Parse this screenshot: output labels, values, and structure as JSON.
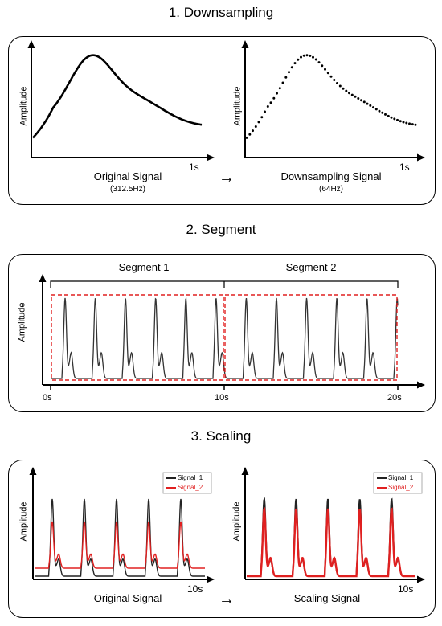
{
  "sections": [
    {
      "title": "1. Downsampling"
    },
    {
      "title": "2. Segment"
    },
    {
      "title": "3. Scaling"
    }
  ],
  "downsampling": {
    "left": {
      "ylabel": "Amplitude",
      "tick": "1s",
      "caption": "Original Signal",
      "subcaption": "(312.5Hz)"
    },
    "arrow": "→",
    "right": {
      "ylabel": "Amplitude",
      "tick": "1s",
      "caption": "Downsampling Signal",
      "subcaption": "(64Hz)"
    }
  },
  "segment": {
    "ylabel": "Amplitude",
    "segments": [
      "Segment 1",
      "Segment 2"
    ],
    "ticks": [
      "0s",
      "10s",
      "20s"
    ],
    "colors": {
      "box": "#e02020"
    }
  },
  "scaling": {
    "left": {
      "ylabel": "Amplitude",
      "tick": "10s",
      "caption": "Original Signal"
    },
    "arrow": "→",
    "right": {
      "ylabel": "Amplitude",
      "tick": "10s",
      "caption": "Scaling Signal"
    },
    "legend": [
      "Signal_1",
      "Signal_2"
    ],
    "colors": {
      "signal_1": "#222222",
      "signal_2": "#e02020"
    }
  }
}
